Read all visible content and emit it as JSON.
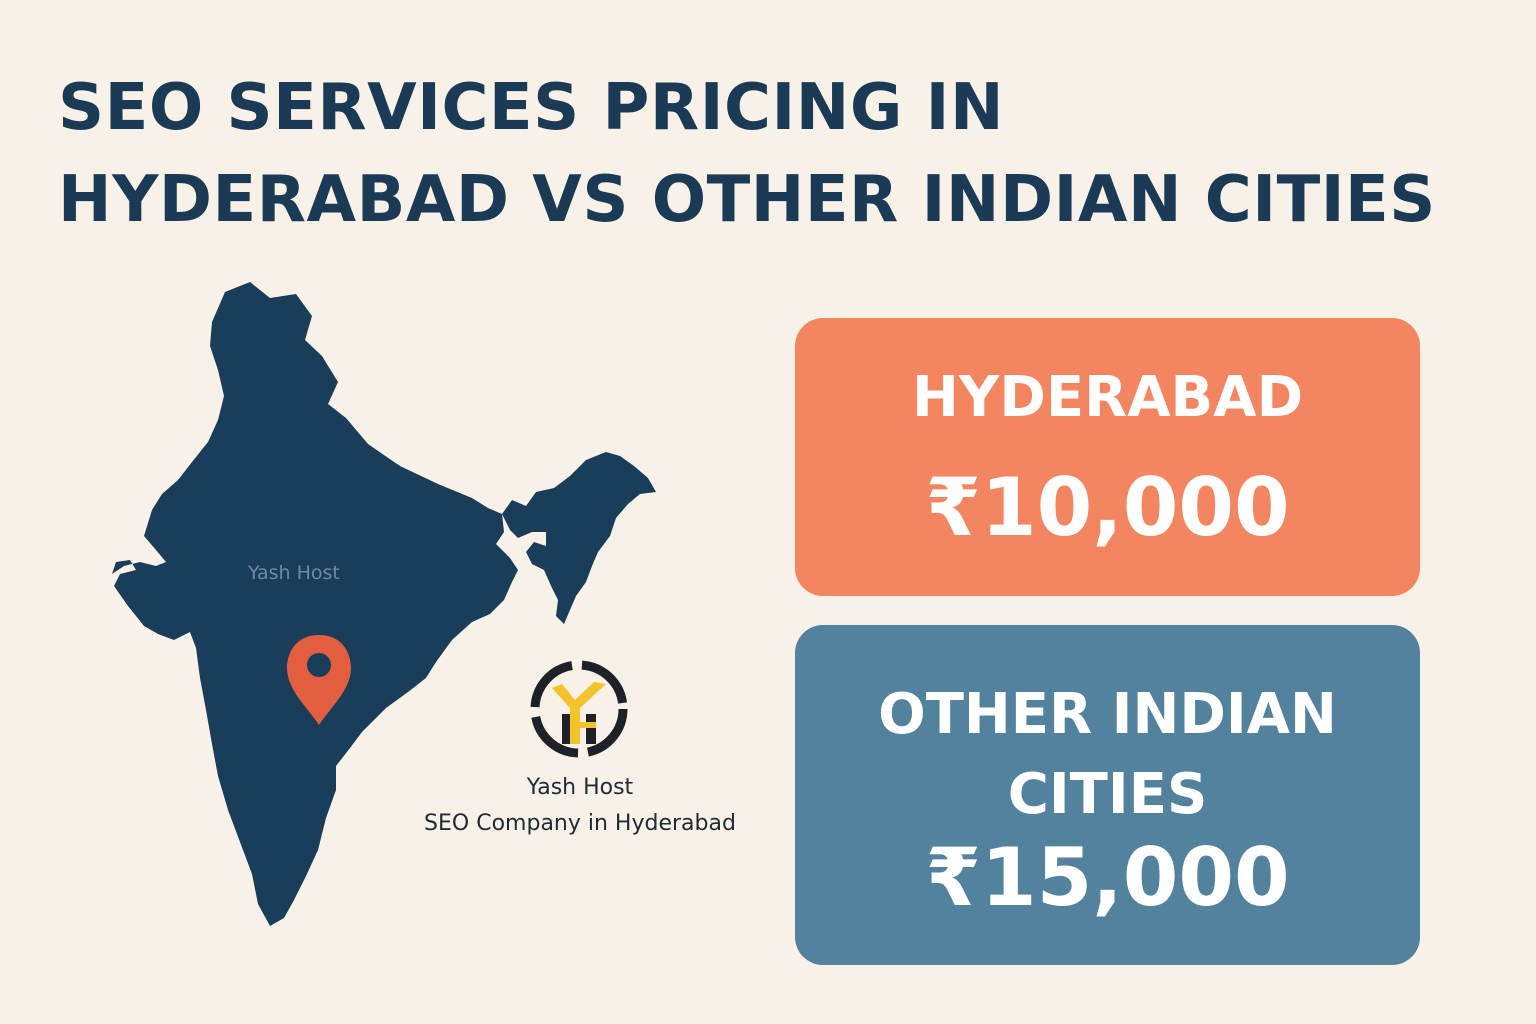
{
  "title": {
    "line1": "SEO SERVICES PRICING IN",
    "line2": "HYDERABAD VS OTHER INDIAN CITIES"
  },
  "map": {
    "label": "Yash Host",
    "country_color": "#1a3d5a",
    "pin_color": "#e35e3f"
  },
  "company": {
    "name": "Yash Host",
    "tagline": "SEO Company in Hyderabad"
  },
  "cards": {
    "hyderabad": {
      "city": "HYDERABAD",
      "price": "₹10,000",
      "color": "#f38561"
    },
    "other": {
      "city": "OTHER INDIAN CITIES",
      "price": "₹15,000",
      "color": "#53829e"
    }
  },
  "colors": {
    "background": "#f7f1e8",
    "title": "#1b3a55",
    "logo_yellow": "#f4c22b",
    "logo_dark": "#1e2228"
  }
}
